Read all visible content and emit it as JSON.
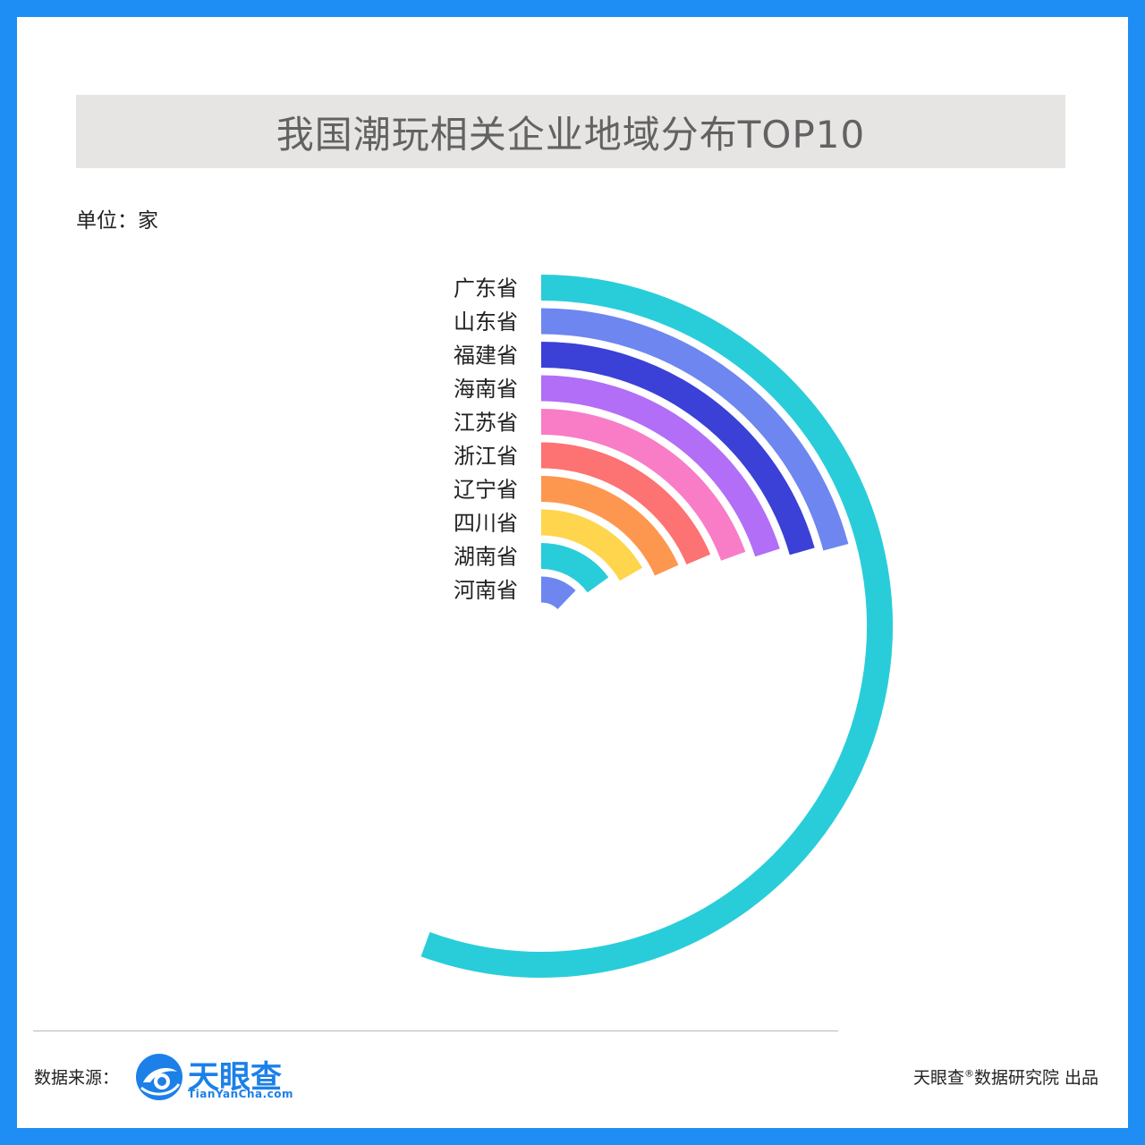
{
  "title": "我国潮玩相关企业地域分布TOP10",
  "unit_label": "单位：家",
  "source_label": "数据来源：",
  "logo": {
    "name": "天眼查",
    "url": "TianYanCha.com",
    "icon": "tianyancha-eye-logo",
    "color": "#1c80e8"
  },
  "footer": {
    "brand": "天眼查",
    "mark": "®",
    "suffix": "数据研究院 出品"
  },
  "chart_data": {
    "type": "radial-bar",
    "title": "我国潮玩相关企业地域分布TOP10",
    "unit": "家",
    "categories": [
      "广东省",
      "山东省",
      "福建省",
      "海南省",
      "江苏省",
      "浙江省",
      "辽宁省",
      "四川省",
      "湖南省",
      "河南省"
    ],
    "values": [
      100,
      37.5,
      37,
      36,
      35,
      33.5,
      33,
      30,
      27,
      22
    ],
    "value_scale": "relative share of the largest bar (arc sweep), values not printed",
    "colors": [
      "#29cdd9",
      "#6d86f0",
      "#3b40d6",
      "#b26ef6",
      "#f87dc6",
      "#fd7272",
      "#fd9750",
      "#fed54c",
      "#29cdd9",
      "#6d86f0"
    ],
    "legend": "category labels placed left of each arc start",
    "grid": false
  }
}
